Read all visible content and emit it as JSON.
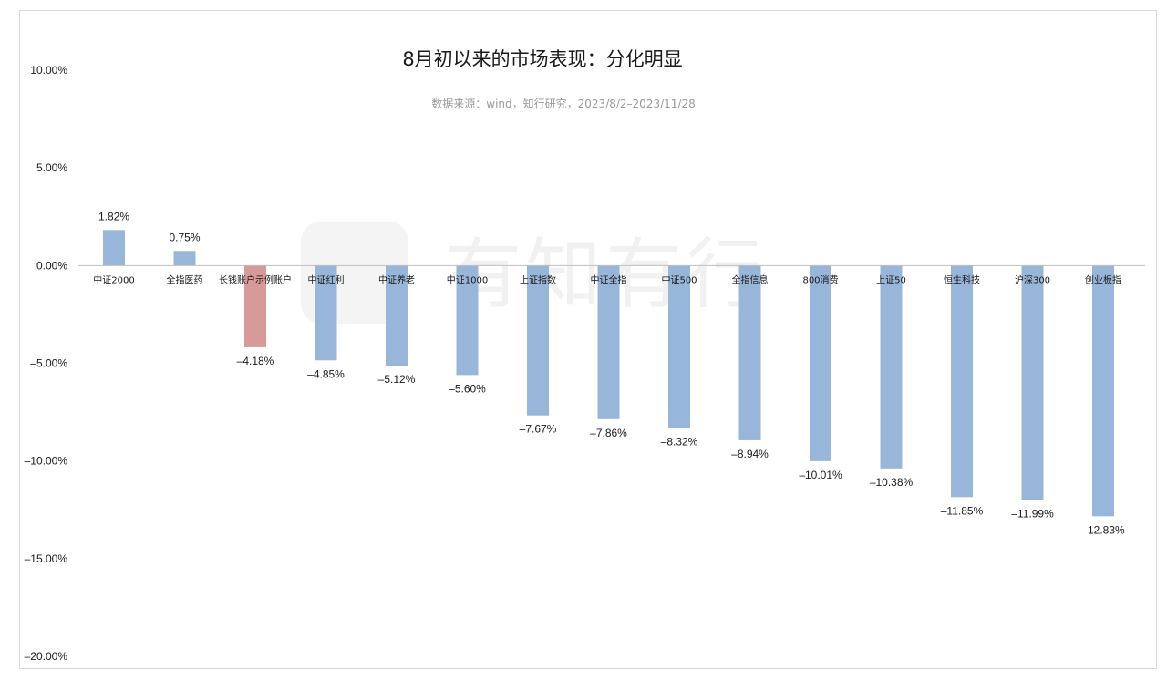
{
  "chart_data": {
    "type": "bar",
    "title": "8月初以来的市场表现：分化明显",
    "subtitle": "数据来源：wind，知行研究，2023/8/2–2023/11/28",
    "watermark": "有知有行",
    "categories": [
      "中证2000",
      "全指医药",
      "长钱账户示例账户",
      "中证红利",
      "中证养老",
      "中证1000",
      "上证指数",
      "中证全指",
      "中证500",
      "全指信息",
      "800消费",
      "上证50",
      "恒生科技",
      "沪深300",
      "创业板指"
    ],
    "values": [
      1.82,
      0.75,
      -4.18,
      -4.85,
      -5.12,
      -5.6,
      -7.67,
      -7.86,
      -8.32,
      -8.94,
      -10.01,
      -10.38,
      -11.85,
      -11.99,
      -12.83
    ],
    "value_labels": [
      "1.82%",
      "0.75%",
      "–4.18%",
      "–4.85%",
      "–5.12%",
      "–5.60%",
      "–7.67%",
      "–7.86%",
      "–8.32%",
      "–8.94%",
      "–10.01%",
      "–10.38%",
      "–11.85%",
      "–11.99%",
      "–12.83%"
    ],
    "highlight_index": 2,
    "ylim": [
      -20,
      10
    ],
    "yticks": [
      10,
      5,
      0,
      -5,
      -10,
      -15,
      -20
    ],
    "ytick_labels": [
      "10.00%",
      "5.00%",
      "0.00%",
      "–5.00%",
      "–10.00%",
      "–15.00%",
      "–20.00%"
    ],
    "xlabel": "",
    "ylabel": "",
    "grid": false,
    "legend": "none",
    "colors": {
      "bar": "#98b6d9",
      "highlight": "#d89a98",
      "axis": "#bfbfbf",
      "text": "#1a1a1a",
      "subtitle": "#9a9a9a"
    }
  }
}
